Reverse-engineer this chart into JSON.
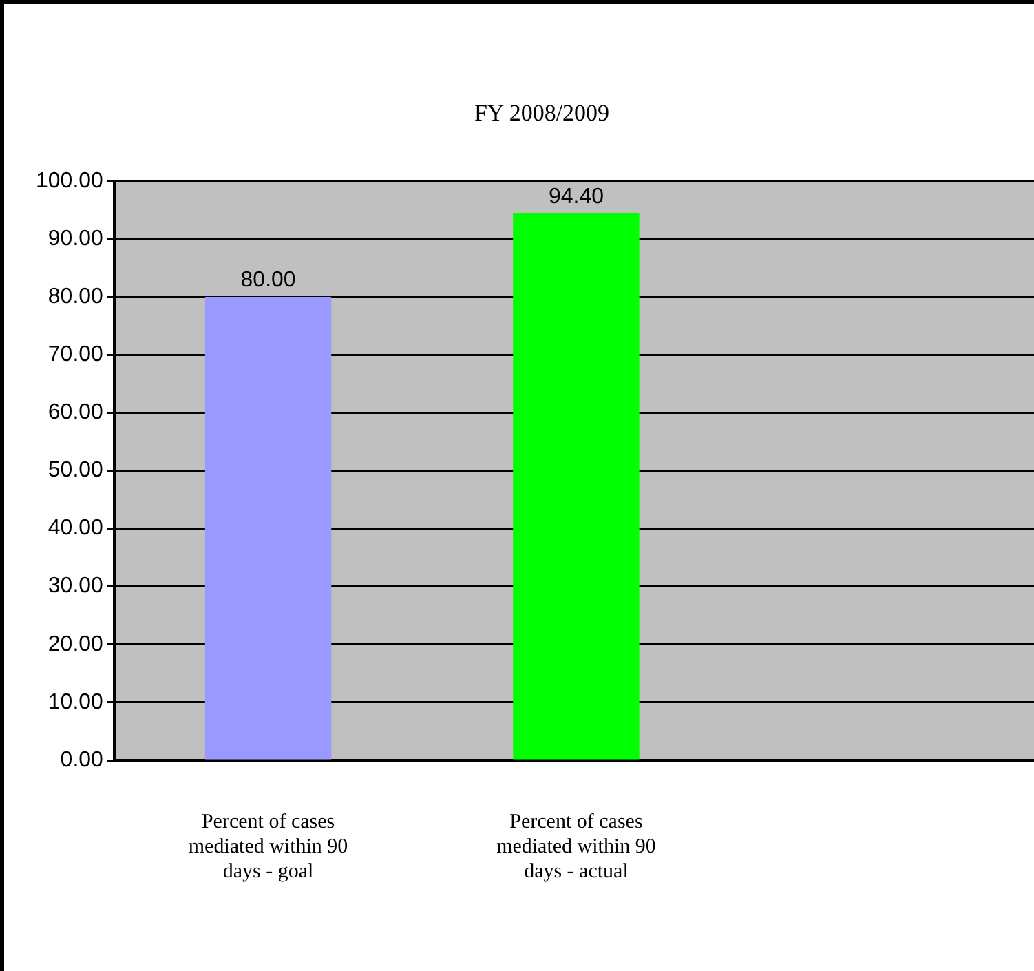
{
  "chart_data": {
    "type": "bar",
    "title": "FY 2008/2009",
    "categories": [
      "Percent of cases mediated within 90 days - goal",
      "Percent of cases mediated within 90 days - actual",
      null
    ],
    "values": [
      80,
      94.4,
      null
    ],
    "colors": [
      "#9999ff",
      "#00ff00",
      "#000000"
    ],
    "value_labels": [
      "80.00",
      "94.40",
      null
    ],
    "ylim": [
      0,
      100
    ],
    "yticks": [
      {
        "value": 0,
        "label": "0.00"
      },
      {
        "value": 10,
        "label": "10.00"
      },
      {
        "value": 20,
        "label": "20.00"
      },
      {
        "value": 30,
        "label": "30.00"
      },
      {
        "value": 40,
        "label": "40.00"
      },
      {
        "value": 50,
        "label": "50.00"
      },
      {
        "value": 60,
        "label": "60.00"
      },
      {
        "value": 70,
        "label": "70.00"
      },
      {
        "value": 80,
        "label": "80.00"
      },
      {
        "value": 90,
        "label": "90.00"
      },
      {
        "value": 100,
        "label": "100.00"
      }
    ],
    "grid": "y",
    "legend": false
  }
}
